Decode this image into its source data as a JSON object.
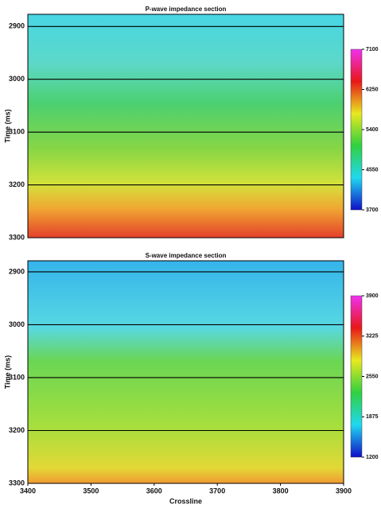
{
  "chart_data": [
    {
      "type": "heatmap",
      "title": "P-wave impedance section",
      "ylabel": "Time (ms)",
      "xlim": [
        3400,
        3900
      ],
      "ylim": [
        2877,
        3300
      ],
      "invert_y": true,
      "yticks": [
        2900,
        3000,
        3100,
        3200,
        3300
      ],
      "grid": true,
      "clim": [
        3700,
        7100
      ],
      "cticks": [
        3700,
        4550,
        5400,
        6250,
        7100
      ],
      "colormap": [
        "#1010c8",
        "#20d8f0",
        "#30d040",
        "#e8e820",
        "#e81818",
        "#f030f0"
      ]
    },
    {
      "type": "heatmap",
      "title": "S-wave impedance section",
      "ylabel": "Time (ms)",
      "xlabel": "Crossline",
      "xlim": [
        3400,
        3900
      ],
      "xticks": [
        3400,
        3500,
        3600,
        3700,
        3800,
        3900
      ],
      "ylim": [
        2879,
        3300
      ],
      "invert_y": true,
      "yticks": [
        2900,
        3000,
        3100,
        3200,
        3300
      ],
      "grid": true,
      "clim": [
        1200,
        3900
      ],
      "cticks": [
        1200,
        1875,
        2550,
        3225,
        3900
      ],
      "colormap": [
        "#1010c8",
        "#20d8f0",
        "#30d040",
        "#e8e820",
        "#e81818",
        "#f030f0"
      ]
    }
  ]
}
